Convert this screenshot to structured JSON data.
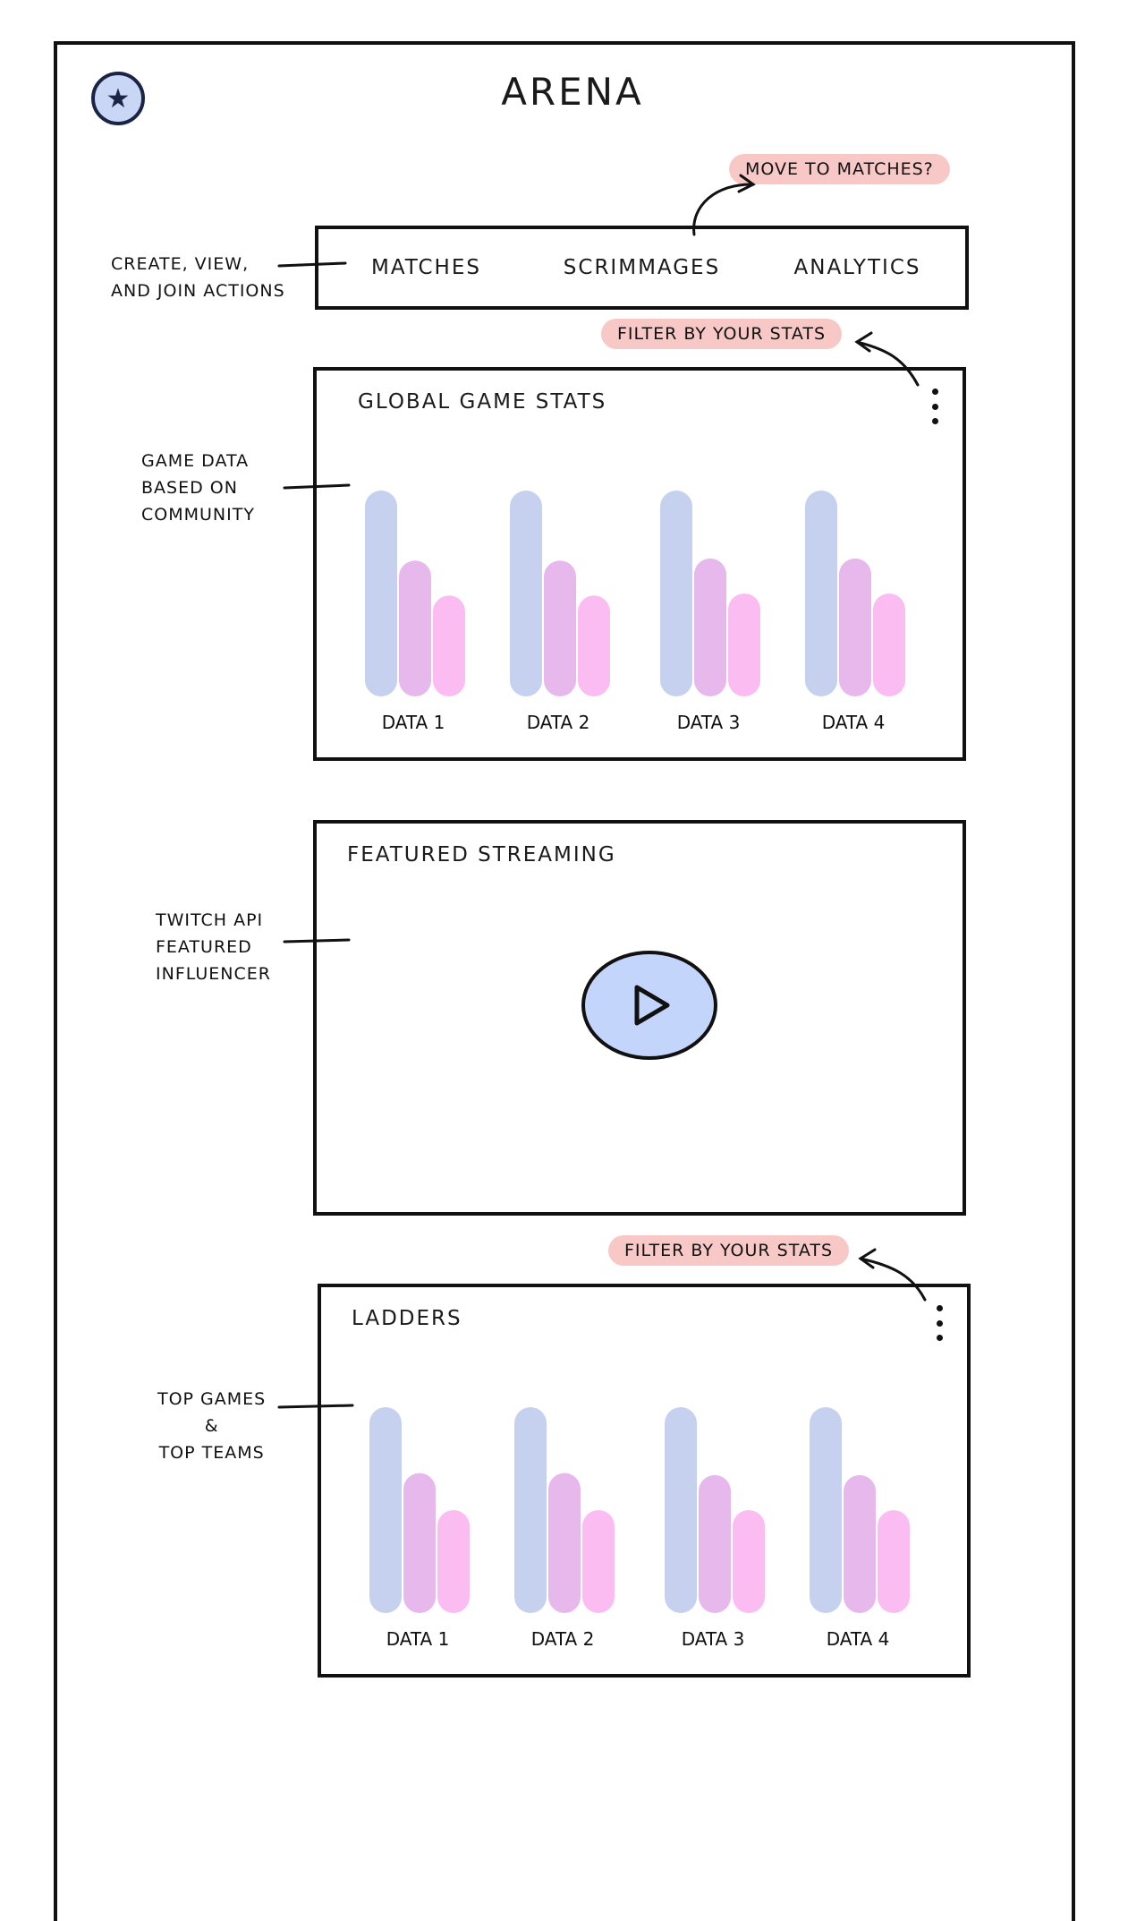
{
  "app": {
    "title": "ARENA",
    "logo_icon": "star-badge-icon"
  },
  "nav": {
    "tabs": [
      {
        "label": "MATCHES"
      },
      {
        "label": "SCRIMMAGES"
      },
      {
        "label": "ANALYTICS"
      }
    ]
  },
  "annotations": {
    "nav_note": [
      "CREATE, VIEW,",
      "AND JOIN ACTIONS"
    ],
    "move_note": "MOVE TO MATCHES?",
    "stats_filter": "FILTER BY YOUR STATS",
    "stats_note": [
      "GAME DATA",
      "BASED ON",
      "COMMUNITY"
    ],
    "stream_note": [
      "TWITCH API",
      "FEATURED",
      "INFLUENCER"
    ],
    "ladders_filter": "FILTER BY YOUR STATS",
    "ladders_note": [
      "TOP GAMES",
      "&",
      "TOP TEAMS"
    ]
  },
  "global_stats": {
    "title": "GLOBAL GAME STATS"
  },
  "streaming": {
    "title": "FEATURED STREAMING",
    "play_icon": "play-icon"
  },
  "ladders": {
    "title": "LADDERS"
  },
  "colors": {
    "bar1": "#c5d1ee",
    "bar2": "#e7b8ec",
    "bar3": "#fbbdf1",
    "pill": "#f8c8c6",
    "play": "#c3d5fb"
  },
  "chart_data": [
    {
      "type": "bar",
      "categories": [
        "DATA 1",
        "DATA 2",
        "DATA 3",
        "DATA 4"
      ],
      "series": [
        {
          "values": [
            10,
            10,
            10,
            10
          ]
        },
        {
          "values": [
            6.6,
            6.6,
            6.7,
            6.7
          ]
        },
        {
          "values": [
            4.9,
            4.9,
            5.0,
            5.0
          ]
        }
      ],
      "ylim": [
        0,
        10
      ]
    },
    {
      "type": "bar",
      "categories": [
        "DATA 1",
        "DATA 2",
        "DATA 3",
        "DATA 4"
      ],
      "series": [
        {
          "values": [
            10,
            10,
            10,
            10
          ]
        },
        {
          "values": [
            6.8,
            6.8,
            6.7,
            6.7
          ]
        },
        {
          "values": [
            5.0,
            5.0,
            5.0,
            5.0
          ]
        }
      ],
      "ylim": [
        0,
        10
      ]
    }
  ]
}
